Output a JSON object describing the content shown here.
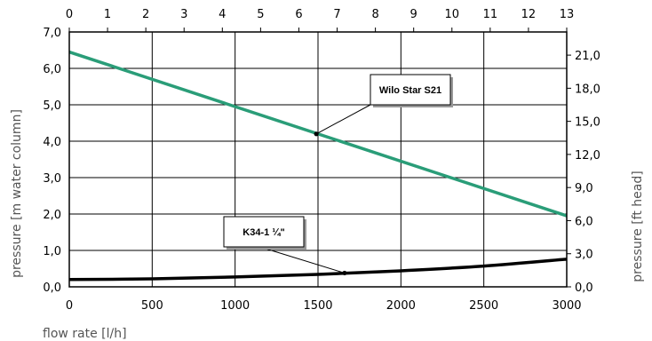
{
  "chart_data": {
    "type": "line",
    "xlabel": "flow rate [l/h]",
    "ylabel_left": "pressure [m water column]",
    "ylabel_right": "pressure [ft head]",
    "x_bottom": {
      "range": [
        0,
        3000
      ],
      "ticks": [
        0,
        500,
        1000,
        1500,
        2000,
        2500,
        3000
      ],
      "tick_labels": [
        "0",
        "500",
        "1000",
        "1500",
        "2000",
        "2500",
        "3000"
      ]
    },
    "x_top": {
      "range": [
        0,
        13
      ],
      "ticks": [
        0,
        1,
        2,
        3,
        4,
        5,
        6,
        7,
        8,
        9,
        10,
        11,
        12,
        13
      ],
      "tick_labels": [
        "0",
        "1",
        "2",
        "3",
        "4",
        "5",
        "6",
        "7",
        "8",
        "9",
        "10",
        "11",
        "12",
        "13"
      ]
    },
    "y_left": {
      "range": [
        0,
        7
      ],
      "ticks": [
        0,
        1,
        2,
        3,
        4,
        5,
        6,
        7
      ],
      "tick_labels": [
        "0,0",
        "1,0",
        "2,0",
        "3,0",
        "4,0",
        "5,0",
        "6,0",
        "7,0"
      ]
    },
    "y_right": {
      "range": [
        0,
        23.1
      ],
      "ticks": [
        0,
        3,
        6,
        9,
        12,
        15,
        18,
        21
      ],
      "tick_labels": [
        "0,0",
        "3,0",
        "6,0",
        "9,0",
        "12,0",
        "15,0",
        "18,0",
        "21,0"
      ]
    },
    "grid": true,
    "series": [
      {
        "name": "Wilo Star S21",
        "color": "#2a9d78",
        "x": [
          0,
          3000
        ],
        "y": [
          6.45,
          1.95
        ]
      },
      {
        "name": "K34-1 ¼\"",
        "color": "#000000",
        "x": [
          0,
          500,
          1000,
          1500,
          2000,
          2500,
          3000
        ],
        "y": [
          0.2,
          0.22,
          0.27,
          0.34,
          0.44,
          0.57,
          0.76
        ]
      }
    ],
    "annotations": [
      {
        "text": "Wilo Star S21",
        "series": 0,
        "point": [
          1490,
          4.2
        ]
      },
      {
        "text": "K34-1 ¼\"",
        "series": 1,
        "point": [
          1660,
          0.38
        ]
      }
    ]
  }
}
